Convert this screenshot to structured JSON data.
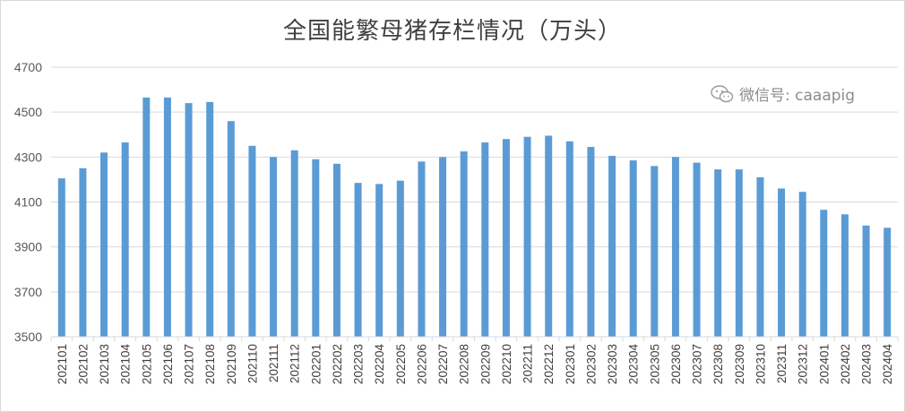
{
  "title": "全国能繁母猪存栏情况（万头）",
  "watermark": {
    "text": "微信号: caaapig",
    "icon": "wechat-icon"
  },
  "colors": {
    "bar": "#5b9bd5",
    "grid": "#d9d9d9",
    "text": "#404040"
  },
  "chart_data": {
    "type": "bar",
    "title": "全国能繁母猪存栏情况（万头）",
    "xlabel": "",
    "ylabel": "",
    "ylim": [
      3500,
      4700
    ],
    "yticks": [
      3500,
      3700,
      3900,
      4100,
      4300,
      4500,
      4700
    ],
    "grid": true,
    "legend": "none",
    "categories": [
      "202101",
      "202102",
      "202103",
      "202104",
      "202105",
      "202106",
      "202107",
      "202108",
      "202109",
      "202110",
      "202111",
      "202112",
      "202201",
      "202202",
      "202203",
      "202204",
      "202205",
      "202206",
      "202207",
      "202208",
      "202209",
      "202210",
      "202211",
      "202212",
      "202301",
      "202302",
      "202303",
      "202304",
      "202305",
      "202306",
      "202307",
      "202308",
      "202309",
      "202310",
      "202311",
      "202312",
      "202401",
      "202402",
      "202403",
      "202404"
    ],
    "values": [
      4205,
      4250,
      4320,
      4365,
      4565,
      4565,
      4540,
      4545,
      4460,
      4350,
      4300,
      4330,
      4290,
      4270,
      4185,
      4180,
      4195,
      4280,
      4300,
      4325,
      4365,
      4380,
      4390,
      4395,
      4370,
      4345,
      4305,
      4285,
      4260,
      4300,
      4275,
      4245,
      4245,
      4210,
      4160,
      4145,
      4065,
      4045,
      3995,
      3985
    ]
  }
}
